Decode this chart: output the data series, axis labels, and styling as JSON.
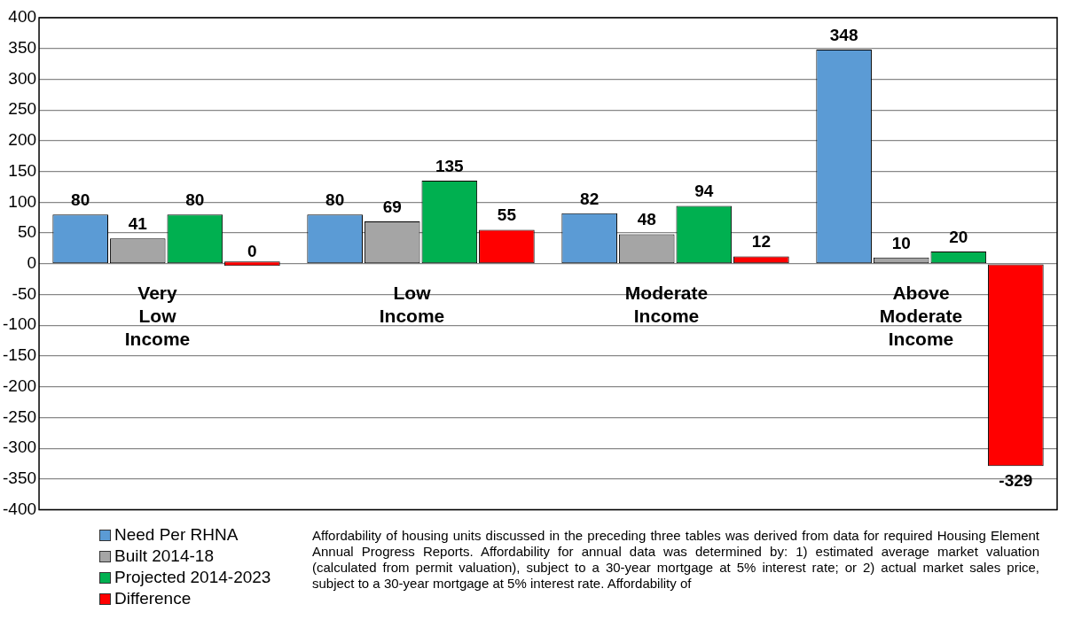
{
  "chart_data": {
    "type": "bar",
    "categories": [
      "Very Low Income",
      "Low Income",
      "Moderate Income",
      "Above Moderate Income"
    ],
    "series": [
      {
        "name": "Need Per RHNA",
        "color": "#5b9bd5",
        "values": [
          80,
          80,
          82,
          348
        ]
      },
      {
        "name": "Built 2014-18",
        "color": "#a5a5a5",
        "values": [
          41,
          69,
          48,
          10
        ]
      },
      {
        "name": "Projected 2014-2023",
        "color": "#00b050",
        "values": [
          80,
          135,
          94,
          20
        ]
      },
      {
        "name": "Difference",
        "color": "#ff0000",
        "values": [
          0,
          55,
          12,
          -329
        ]
      }
    ],
    "ylim": [
      -400,
      400
    ],
    "yticks": [
      -400,
      -350,
      -300,
      -250,
      -200,
      -150,
      -100,
      -50,
      0,
      50,
      100,
      150,
      200,
      250,
      300,
      350,
      400
    ],
    "grid": "y",
    "legend": "bottom left",
    "data_labels": true,
    "annotations": [
      "Affordability of housing units discussed in the preceding three tables was derived from data for required Housing Element Annual Progress Reports. Affordability for annual data was determined by: 1) estimated average market valuation (calculated from permit valuation), subject to a 30-year mortgage at 5% interest rate; or 2) actual market sales price, subject to a 30-year mortgage at 5% interest rate. Affordability of"
    ]
  }
}
